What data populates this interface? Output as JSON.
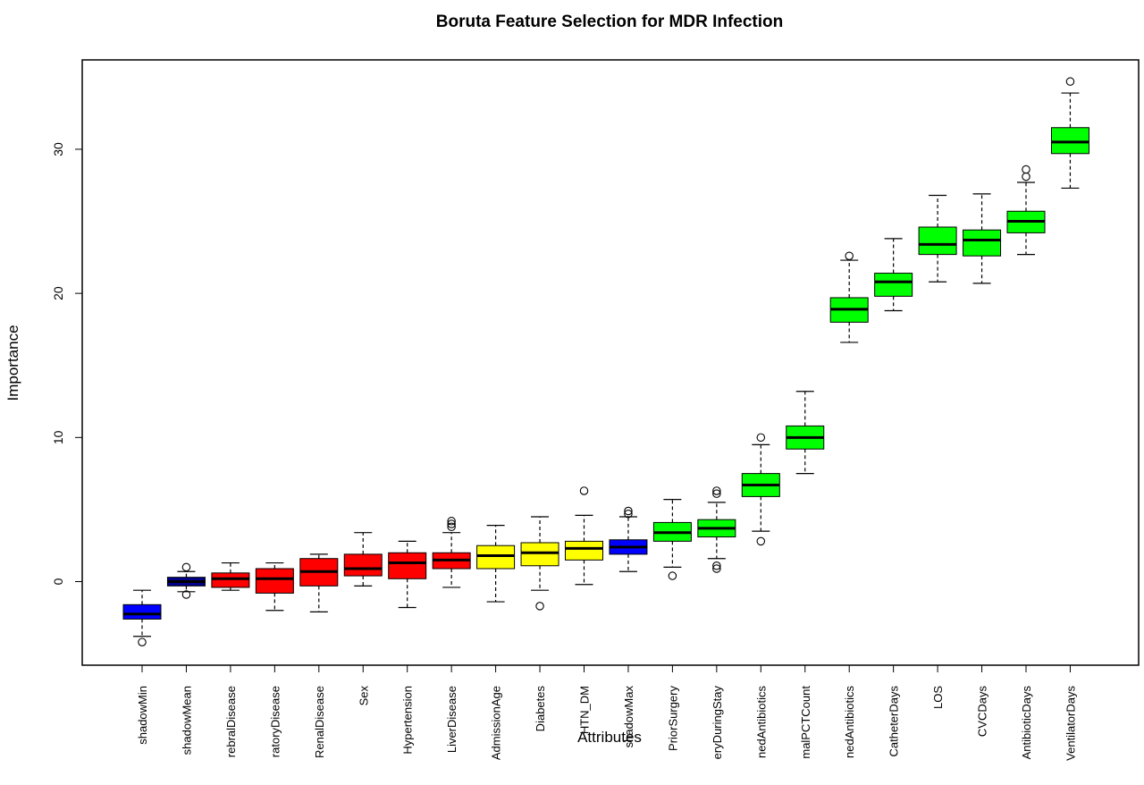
{
  "chart_data": {
    "type": "boxplot",
    "title": "Boruta Feature Selection for MDR Infection",
    "xlabel": "Attributes",
    "ylabel": "Importance",
    "ylim": [
      -5.8,
      36.2
    ],
    "yticks": [
      0,
      10,
      20,
      30
    ],
    "grid": false,
    "legend": "none",
    "colors": {
      "shadow": "#0000ff",
      "shadowMean": "#00008b",
      "rejected": "#ff0000",
      "tentative": "#ffff00",
      "confirmed": "#00ff00"
    },
    "boxes": [
      {
        "label": "shadowMin",
        "status": "shadow",
        "whisker_low": -3.8,
        "q1": -2.6,
        "median": -2.25,
        "q3": -1.6,
        "whisker_high": -0.6,
        "outliers": [
          -4.2
        ]
      },
      {
        "label": "shadowMean",
        "status": "shadowMean",
        "whisker_low": -0.7,
        "q1": -0.3,
        "median": 0.0,
        "q3": 0.3,
        "whisker_high": 0.7,
        "outliers": [
          -0.9,
          1.0
        ]
      },
      {
        "label": "rebralDisease",
        "status": "rejected",
        "whisker_low": -0.6,
        "q1": -0.4,
        "median": 0.2,
        "q3": 0.6,
        "whisker_high": 1.3,
        "outliers": []
      },
      {
        "label": "ratoryDisease",
        "status": "rejected",
        "whisker_low": -2.0,
        "q1": -0.8,
        "median": 0.2,
        "q3": 0.9,
        "whisker_high": 1.3,
        "outliers": []
      },
      {
        "label": "RenalDisease",
        "status": "rejected",
        "whisker_low": -2.1,
        "q1": -0.3,
        "median": 0.7,
        "q3": 1.6,
        "whisker_high": 1.9,
        "outliers": []
      },
      {
        "label": "Sex",
        "status": "rejected",
        "whisker_low": -0.3,
        "q1": 0.4,
        "median": 0.9,
        "q3": 1.9,
        "whisker_high": 3.4,
        "outliers": []
      },
      {
        "label": "Hypertension",
        "status": "rejected",
        "whisker_low": -1.8,
        "q1": 0.2,
        "median": 1.3,
        "q3": 2.0,
        "whisker_high": 2.8,
        "outliers": []
      },
      {
        "label": "LiverDisease",
        "status": "rejected",
        "whisker_low": -0.4,
        "q1": 0.9,
        "median": 1.5,
        "q3": 2.0,
        "whisker_high": 3.4,
        "outliers": [
          3.8,
          4.0,
          4.2
        ]
      },
      {
        "label": "AdmissionAge",
        "status": "tentative",
        "whisker_low": -1.4,
        "q1": 0.9,
        "median": 1.8,
        "q3": 2.5,
        "whisker_high": 3.9,
        "outliers": []
      },
      {
        "label": "Diabetes",
        "status": "tentative",
        "whisker_low": -0.6,
        "q1": 1.1,
        "median": 2.0,
        "q3": 2.7,
        "whisker_high": 4.5,
        "outliers": [
          -1.7
        ]
      },
      {
        "label": "HTN_DM",
        "status": "tentative",
        "whisker_low": -0.2,
        "q1": 1.5,
        "median": 2.3,
        "q3": 2.8,
        "whisker_high": 4.6,
        "outliers": [
          6.3
        ]
      },
      {
        "label": "shadowMax",
        "status": "shadow",
        "whisker_low": 0.7,
        "q1": 1.9,
        "median": 2.4,
        "q3": 2.9,
        "whisker_high": 4.5,
        "outliers": [
          4.7,
          4.9
        ]
      },
      {
        "label": "PriorSurgery",
        "status": "confirmed",
        "whisker_low": 1.0,
        "q1": 2.8,
        "median": 3.4,
        "q3": 4.1,
        "whisker_high": 5.7,
        "outliers": [
          0.4
        ]
      },
      {
        "label": "eryDuringStay",
        "status": "confirmed",
        "whisker_low": 1.6,
        "q1": 3.1,
        "median": 3.7,
        "q3": 4.3,
        "whisker_high": 5.5,
        "outliers": [
          0.9,
          1.1,
          6.1,
          6.3
        ]
      },
      {
        "label": "nedAntibiotics",
        "status": "confirmed",
        "whisker_low": 3.5,
        "q1": 5.9,
        "median": 6.7,
        "q3": 7.5,
        "whisker_high": 9.5,
        "outliers": [
          2.8,
          10.0
        ]
      },
      {
        "label": "malPCTCount",
        "status": "confirmed",
        "whisker_low": 7.5,
        "q1": 9.2,
        "median": 10.0,
        "q3": 10.8,
        "whisker_high": 13.2,
        "outliers": []
      },
      {
        "label": "nedAntibiotics",
        "status": "confirmed",
        "whisker_low": 16.6,
        "q1": 18.0,
        "median": 18.9,
        "q3": 19.7,
        "whisker_high": 22.3,
        "outliers": [
          22.6
        ]
      },
      {
        "label": "CatheterDays",
        "status": "confirmed",
        "whisker_low": 18.8,
        "q1": 19.8,
        "median": 20.8,
        "q3": 21.4,
        "whisker_high": 23.8,
        "outliers": []
      },
      {
        "label": "LOS",
        "status": "confirmed",
        "whisker_low": 20.8,
        "q1": 22.7,
        "median": 23.4,
        "q3": 24.6,
        "whisker_high": 26.8,
        "outliers": []
      },
      {
        "label": "CVCDays",
        "status": "confirmed",
        "whisker_low": 20.7,
        "q1": 22.6,
        "median": 23.7,
        "q3": 24.4,
        "whisker_high": 26.9,
        "outliers": []
      },
      {
        "label": "AntibioticDays",
        "status": "confirmed",
        "whisker_low": 22.7,
        "q1": 24.2,
        "median": 25.0,
        "q3": 25.7,
        "whisker_high": 27.7,
        "outliers": [
          28.1,
          28.6
        ]
      },
      {
        "label": "VentilatorDays",
        "status": "confirmed",
        "whisker_low": 27.3,
        "q1": 29.7,
        "median": 30.5,
        "q3": 31.5,
        "whisker_high": 33.9,
        "outliers": [
          34.7
        ]
      }
    ]
  }
}
